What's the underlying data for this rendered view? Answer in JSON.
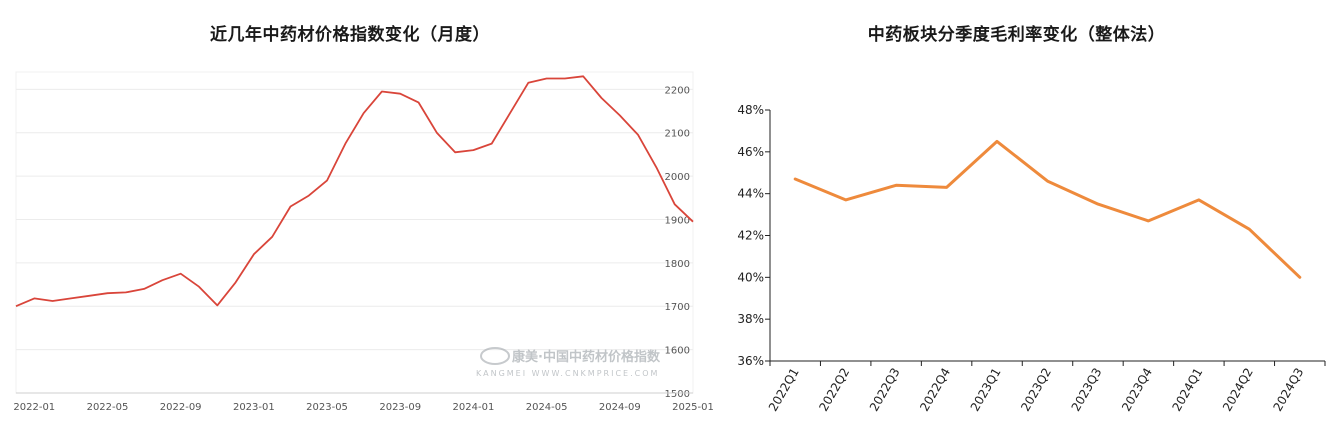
{
  "chart_data": [
    {
      "type": "line",
      "title": "近几年中药材价格指数变化（月度）",
      "watermark": {
        "line1": "康美·中国中药材价格指数",
        "line2": "KANGMEI WWW.CNKMPRICE.COM"
      },
      "x_tick_labels": [
        "2022-01",
        "2022-05",
        "2022-09",
        "2023-01",
        "2023-05",
        "2023-09",
        "2024-01",
        "2024-05",
        "2024-09",
        "2025-01"
      ],
      "y_tick_labels": [
        "1500",
        "1600",
        "1700",
        "1800",
        "1900",
        "2000",
        "2100",
        "2200"
      ],
      "ylim": [
        1500,
        2240
      ],
      "y_axis_position": "right",
      "grid": true,
      "line_color": "#d9453a",
      "series": [
        {
          "x": [
            "2021-12",
            "2022-01",
            "2022-02",
            "2022-03",
            "2022-04",
            "2022-05",
            "2022-06",
            "2022-07",
            "2022-08",
            "2022-09",
            "2022-10",
            "2022-11",
            "2022-12",
            "2023-01",
            "2023-02",
            "2023-03",
            "2023-04",
            "2023-05",
            "2023-06",
            "2023-07",
            "2023-08",
            "2023-09",
            "2023-10",
            "2023-11",
            "2023-12",
            "2024-01",
            "2024-02",
            "2024-03",
            "2024-04",
            "2024-05",
            "2024-06",
            "2024-07",
            "2024-08",
            "2024-09",
            "2024-10",
            "2024-11",
            "2024-12",
            "2025-01"
          ],
          "values": [
            1700,
            1718,
            1712,
            1718,
            1724,
            1730,
            1732,
            1740,
            1760,
            1775,
            1745,
            1702,
            1755,
            1820,
            1860,
            1930,
            1955,
            1990,
            2075,
            2145,
            2195,
            2190,
            2170,
            2100,
            2055,
            2060,
            2075,
            2145,
            2215,
            2225,
            2225,
            2230,
            2180,
            2140,
            2095,
            2020,
            1935,
            1895
          ]
        }
      ]
    },
    {
      "type": "line",
      "title": "中药板块分季度毛利率变化（整体法）",
      "categories": [
        "2022Q1",
        "2022Q2",
        "2022Q3",
        "2022Q4",
        "2023Q1",
        "2023Q2",
        "2023Q3",
        "2023Q4",
        "2024Q1",
        "2024Q2",
        "2024Q3"
      ],
      "y_tick_labels": [
        "36%",
        "38%",
        "40%",
        "42%",
        "44%",
        "46%",
        "48%"
      ],
      "ylim": [
        36,
        48
      ],
      "y_unit": "%",
      "grid": false,
      "line_color": "#ee8a3c",
      "series": [
        {
          "values": [
            44.7,
            43.7,
            44.4,
            44.3,
            46.5,
            44.6,
            43.5,
            42.7,
            43.7,
            42.3,
            40.0
          ]
        }
      ]
    }
  ]
}
